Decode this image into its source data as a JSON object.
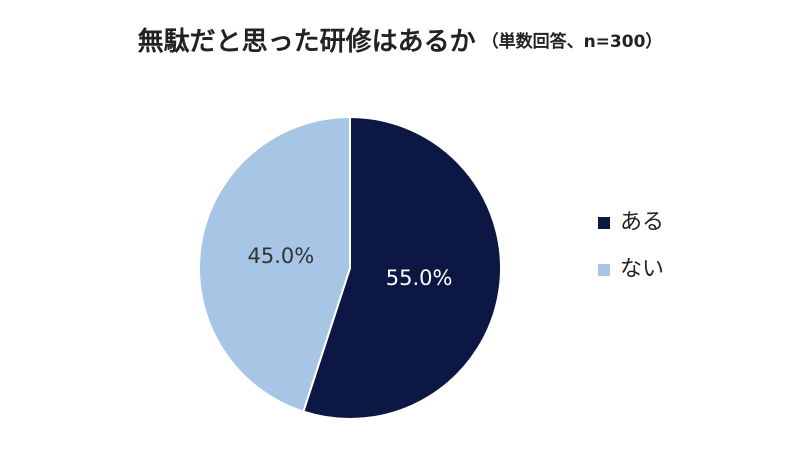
{
  "chart_data": {
    "type": "pie",
    "title": "無駄だと思った研修はあるか",
    "subtitle": "（単数回答、n=300）",
    "categories": [
      "ある",
      "ない"
    ],
    "values": [
      55.0,
      45.0
    ],
    "value_labels": [
      "55.0%",
      "45.0%"
    ],
    "colors": [
      "#0c1744",
      "#a7c5e5"
    ],
    "legend": "right"
  }
}
